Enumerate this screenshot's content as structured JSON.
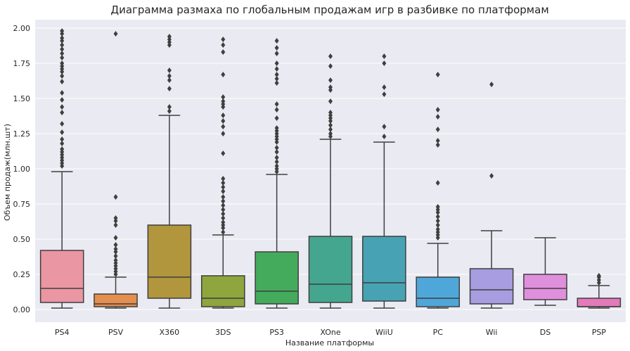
{
  "chart_data": {
    "type": "boxplot",
    "title": "Диаграмма размаха по глобальным продажам игр в разбивке по платформам",
    "xlabel": "Название платформы",
    "ylabel": "Объем продаж(млн.шт)",
    "ylim": [
      -0.08,
      2.06
    ],
    "yticks": [
      "0.00",
      "0.25",
      "0.50",
      "0.75",
      "1.00",
      "1.25",
      "1.50",
      "1.75",
      "2.00"
    ],
    "grid": true,
    "background": "#eaeaf2",
    "categories": [
      {
        "name": "PS4",
        "color": "#ea96a3",
        "whisker_low": 0.01,
        "q1": 0.05,
        "median": 0.15,
        "q3": 0.42,
        "whisker_high": 0.98,
        "outliers": [
          1.02,
          1.04,
          1.06,
          1.08,
          1.1,
          1.12,
          1.14,
          1.18,
          1.21,
          1.26,
          1.32,
          1.4,
          1.44,
          1.49,
          1.54,
          1.62,
          1.66,
          1.69,
          1.71,
          1.73,
          1.75,
          1.79,
          1.82,
          1.85,
          1.88,
          1.91,
          1.93,
          1.96,
          1.98
        ]
      },
      {
        "name": "PSV",
        "color": "#e48f4f",
        "whisker_low": 0.01,
        "q1": 0.02,
        "median": 0.04,
        "q3": 0.11,
        "whisker_high": 0.23,
        "outliers": [
          0.25,
          0.27,
          0.29,
          0.31,
          0.33,
          0.35,
          0.38,
          0.41,
          0.43,
          0.46,
          0.51,
          0.6,
          0.63,
          0.65,
          0.8,
          1.96
        ]
      },
      {
        "name": "X360",
        "color": "#b1963d",
        "whisker_low": 0.01,
        "q1": 0.08,
        "median": 0.23,
        "q3": 0.6,
        "whisker_high": 1.38,
        "outliers": [
          1.41,
          1.44,
          1.57,
          1.63,
          1.66,
          1.7,
          1.88,
          1.9,
          1.92,
          1.94
        ]
      },
      {
        "name": "3DS",
        "color": "#8ea63d",
        "whisker_low": 0.01,
        "q1": 0.02,
        "median": 0.08,
        "q3": 0.24,
        "whisker_high": 0.53,
        "outliers": [
          0.55,
          0.58,
          0.6,
          0.62,
          0.65,
          0.68,
          0.71,
          0.74,
          0.77,
          0.8,
          0.84,
          0.87,
          0.9,
          0.93,
          1.11,
          1.25,
          1.3,
          1.34,
          1.38,
          1.44,
          1.46,
          1.48,
          1.51,
          1.67,
          1.83,
          1.88,
          1.92
        ]
      },
      {
        "name": "PS3",
        "color": "#45ab5c",
        "whisker_low": 0.01,
        "q1": 0.04,
        "median": 0.13,
        "q3": 0.41,
        "whisker_high": 0.96,
        "outliers": [
          0.98,
          1.0,
          1.02,
          1.05,
          1.08,
          1.12,
          1.15,
          1.19,
          1.21,
          1.23,
          1.25,
          1.27,
          1.29,
          1.36,
          1.42,
          1.46,
          1.61,
          1.64,
          1.67,
          1.71,
          1.75,
          1.82,
          1.86,
          1.91
        ]
      },
      {
        "name": "XOne",
        "color": "#45a690",
        "whisker_low": 0.01,
        "q1": 0.05,
        "median": 0.18,
        "q3": 0.52,
        "whisker_high": 1.21,
        "outliers": [
          1.23,
          1.25,
          1.28,
          1.31,
          1.34,
          1.36,
          1.38,
          1.4,
          1.48,
          1.56,
          1.58,
          1.63,
          1.73,
          1.8
        ]
      },
      {
        "name": "WiiU",
        "color": "#47a3b3",
        "whisker_low": 0.01,
        "q1": 0.06,
        "median": 0.19,
        "q3": 0.52,
        "whisker_high": 1.19,
        "outliers": [
          1.23,
          1.3,
          1.53,
          1.58,
          1.75,
          1.8
        ]
      },
      {
        "name": "PC",
        "color": "#4fa7d9",
        "whisker_low": 0.01,
        "q1": 0.02,
        "median": 0.08,
        "q3": 0.23,
        "whisker_high": 0.47,
        "outliers": [
          0.51,
          0.53,
          0.55,
          0.57,
          0.6,
          0.63,
          0.66,
          0.69,
          0.71,
          0.73,
          0.9,
          1.17,
          1.2,
          1.28,
          1.37,
          1.42,
          1.67
        ]
      },
      {
        "name": "Wii",
        "color": "#a79de0",
        "whisker_low": 0.01,
        "q1": 0.04,
        "median": 0.14,
        "q3": 0.29,
        "whisker_high": 0.56,
        "outliers": [
          0.95,
          1.6
        ]
      },
      {
        "name": "DS",
        "color": "#df8fdc",
        "whisker_low": 0.03,
        "q1": 0.07,
        "median": 0.15,
        "q3": 0.25,
        "whisker_high": 0.51,
        "outliers": []
      },
      {
        "name": "PSP",
        "color": "#e37aba",
        "whisker_low": 0.01,
        "q1": 0.02,
        "median": 0.02,
        "q3": 0.08,
        "whisker_high": 0.17,
        "outliers": [
          0.19,
          0.21,
          0.23,
          0.24
        ]
      }
    ]
  }
}
